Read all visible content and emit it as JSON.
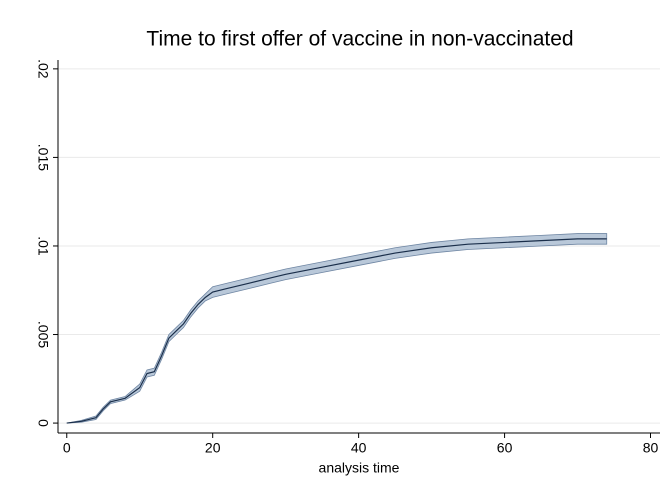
{
  "chart_data": {
    "type": "line",
    "title": "Time to first offer of vaccine in non-vaccinated",
    "x_label": "analysis time",
    "x": [
      0,
      2,
      4,
      5,
      6,
      8,
      10,
      11,
      12,
      13,
      14,
      15,
      16,
      17,
      18,
      19,
      20,
      22,
      25,
      28,
      30,
      35,
      40,
      45,
      50,
      55,
      60,
      65,
      70,
      74
    ],
    "values": [
      0,
      0.0001,
      0.0003,
      0.0008,
      0.0012,
      0.0014,
      0.002,
      0.0028,
      0.0029,
      0.0038,
      0.0048,
      0.0052,
      0.0056,
      0.0062,
      0.0067,
      0.0071,
      0.0074,
      0.0076,
      0.0079,
      0.0082,
      0.0084,
      0.0088,
      0.0092,
      0.0096,
      0.0099,
      0.0101,
      0.0102,
      0.0103,
      0.0104,
      0.0104
    ],
    "lower": [
      0,
      5e-05,
      0.0002,
      0.0007,
      0.0011,
      0.0013,
      0.0018,
      0.0026,
      0.0027,
      0.0036,
      0.0046,
      0.005,
      0.0054,
      0.006,
      0.0065,
      0.0069,
      0.0071,
      0.0073,
      0.0076,
      0.0079,
      0.0081,
      0.0085,
      0.0089,
      0.0093,
      0.0096,
      0.0098,
      0.0099,
      0.01,
      0.0101,
      0.0101
    ],
    "upper": [
      0,
      0.00015,
      0.0004,
      0.0009,
      0.0013,
      0.0015,
      0.0022,
      0.003,
      0.0031,
      0.004,
      0.005,
      0.0054,
      0.0058,
      0.0064,
      0.0069,
      0.0073,
      0.0077,
      0.0079,
      0.0082,
      0.0085,
      0.0087,
      0.0091,
      0.0095,
      0.0099,
      0.0102,
      0.0104,
      0.0105,
      0.0106,
      0.0107,
      0.0107
    ],
    "color": "#1a2e4a",
    "band_color": "#b9c8d9",
    "xlim": [
      -1.2,
      81.3
    ],
    "xticks": [
      0,
      20,
      40,
      60,
      80
    ],
    "ylim": [
      -0.00056,
      0.0205
    ],
    "yticks": [
      0,
      {
        "value": 0.005,
        "label": ".005"
      },
      {
        "value": 0.01,
        "label": ".01"
      },
      {
        "value": 0.015,
        "label": ".015"
      },
      {
        "value": 0.02,
        "label": ".02"
      }
    ],
    "grid": true
  }
}
